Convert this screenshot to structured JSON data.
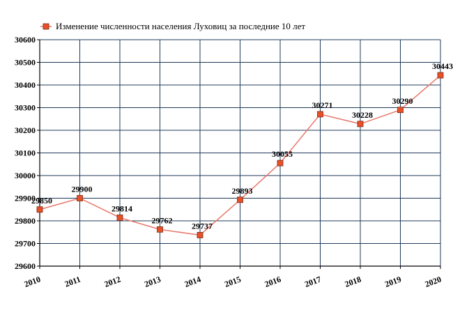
{
  "chart_data": {
    "type": "line",
    "title": "",
    "xlabel": "",
    "ylabel": "",
    "categories": [
      "2010",
      "2011",
      "2012",
      "2013",
      "2014",
      "2015",
      "2016",
      "2017",
      "2018",
      "2019",
      "2020"
    ],
    "series": [
      {
        "name": "Изменение численности населения Луховиц за последние 10 лет",
        "values": [
          29850,
          29900,
          29814,
          29762,
          29737,
          29893,
          30055,
          30271,
          30228,
          30290,
          30443
        ],
        "color": "#e8502a",
        "line_color": "#e8766a"
      }
    ],
    "y_ticks": [
      "29600",
      "29700",
      "29800",
      "29900",
      "30000",
      "30100",
      "30200",
      "30300",
      "30400",
      "30500",
      "30600"
    ],
    "ylim": [
      29600,
      30600
    ],
    "grid": true,
    "grid_color": "#1f3a5a",
    "legend_position": "top-left",
    "data_labels": [
      "29850",
      "29900",
      "29814",
      "29762",
      "29737",
      "29893",
      "30055",
      "30271",
      "30228",
      "30290",
      "30443"
    ]
  }
}
